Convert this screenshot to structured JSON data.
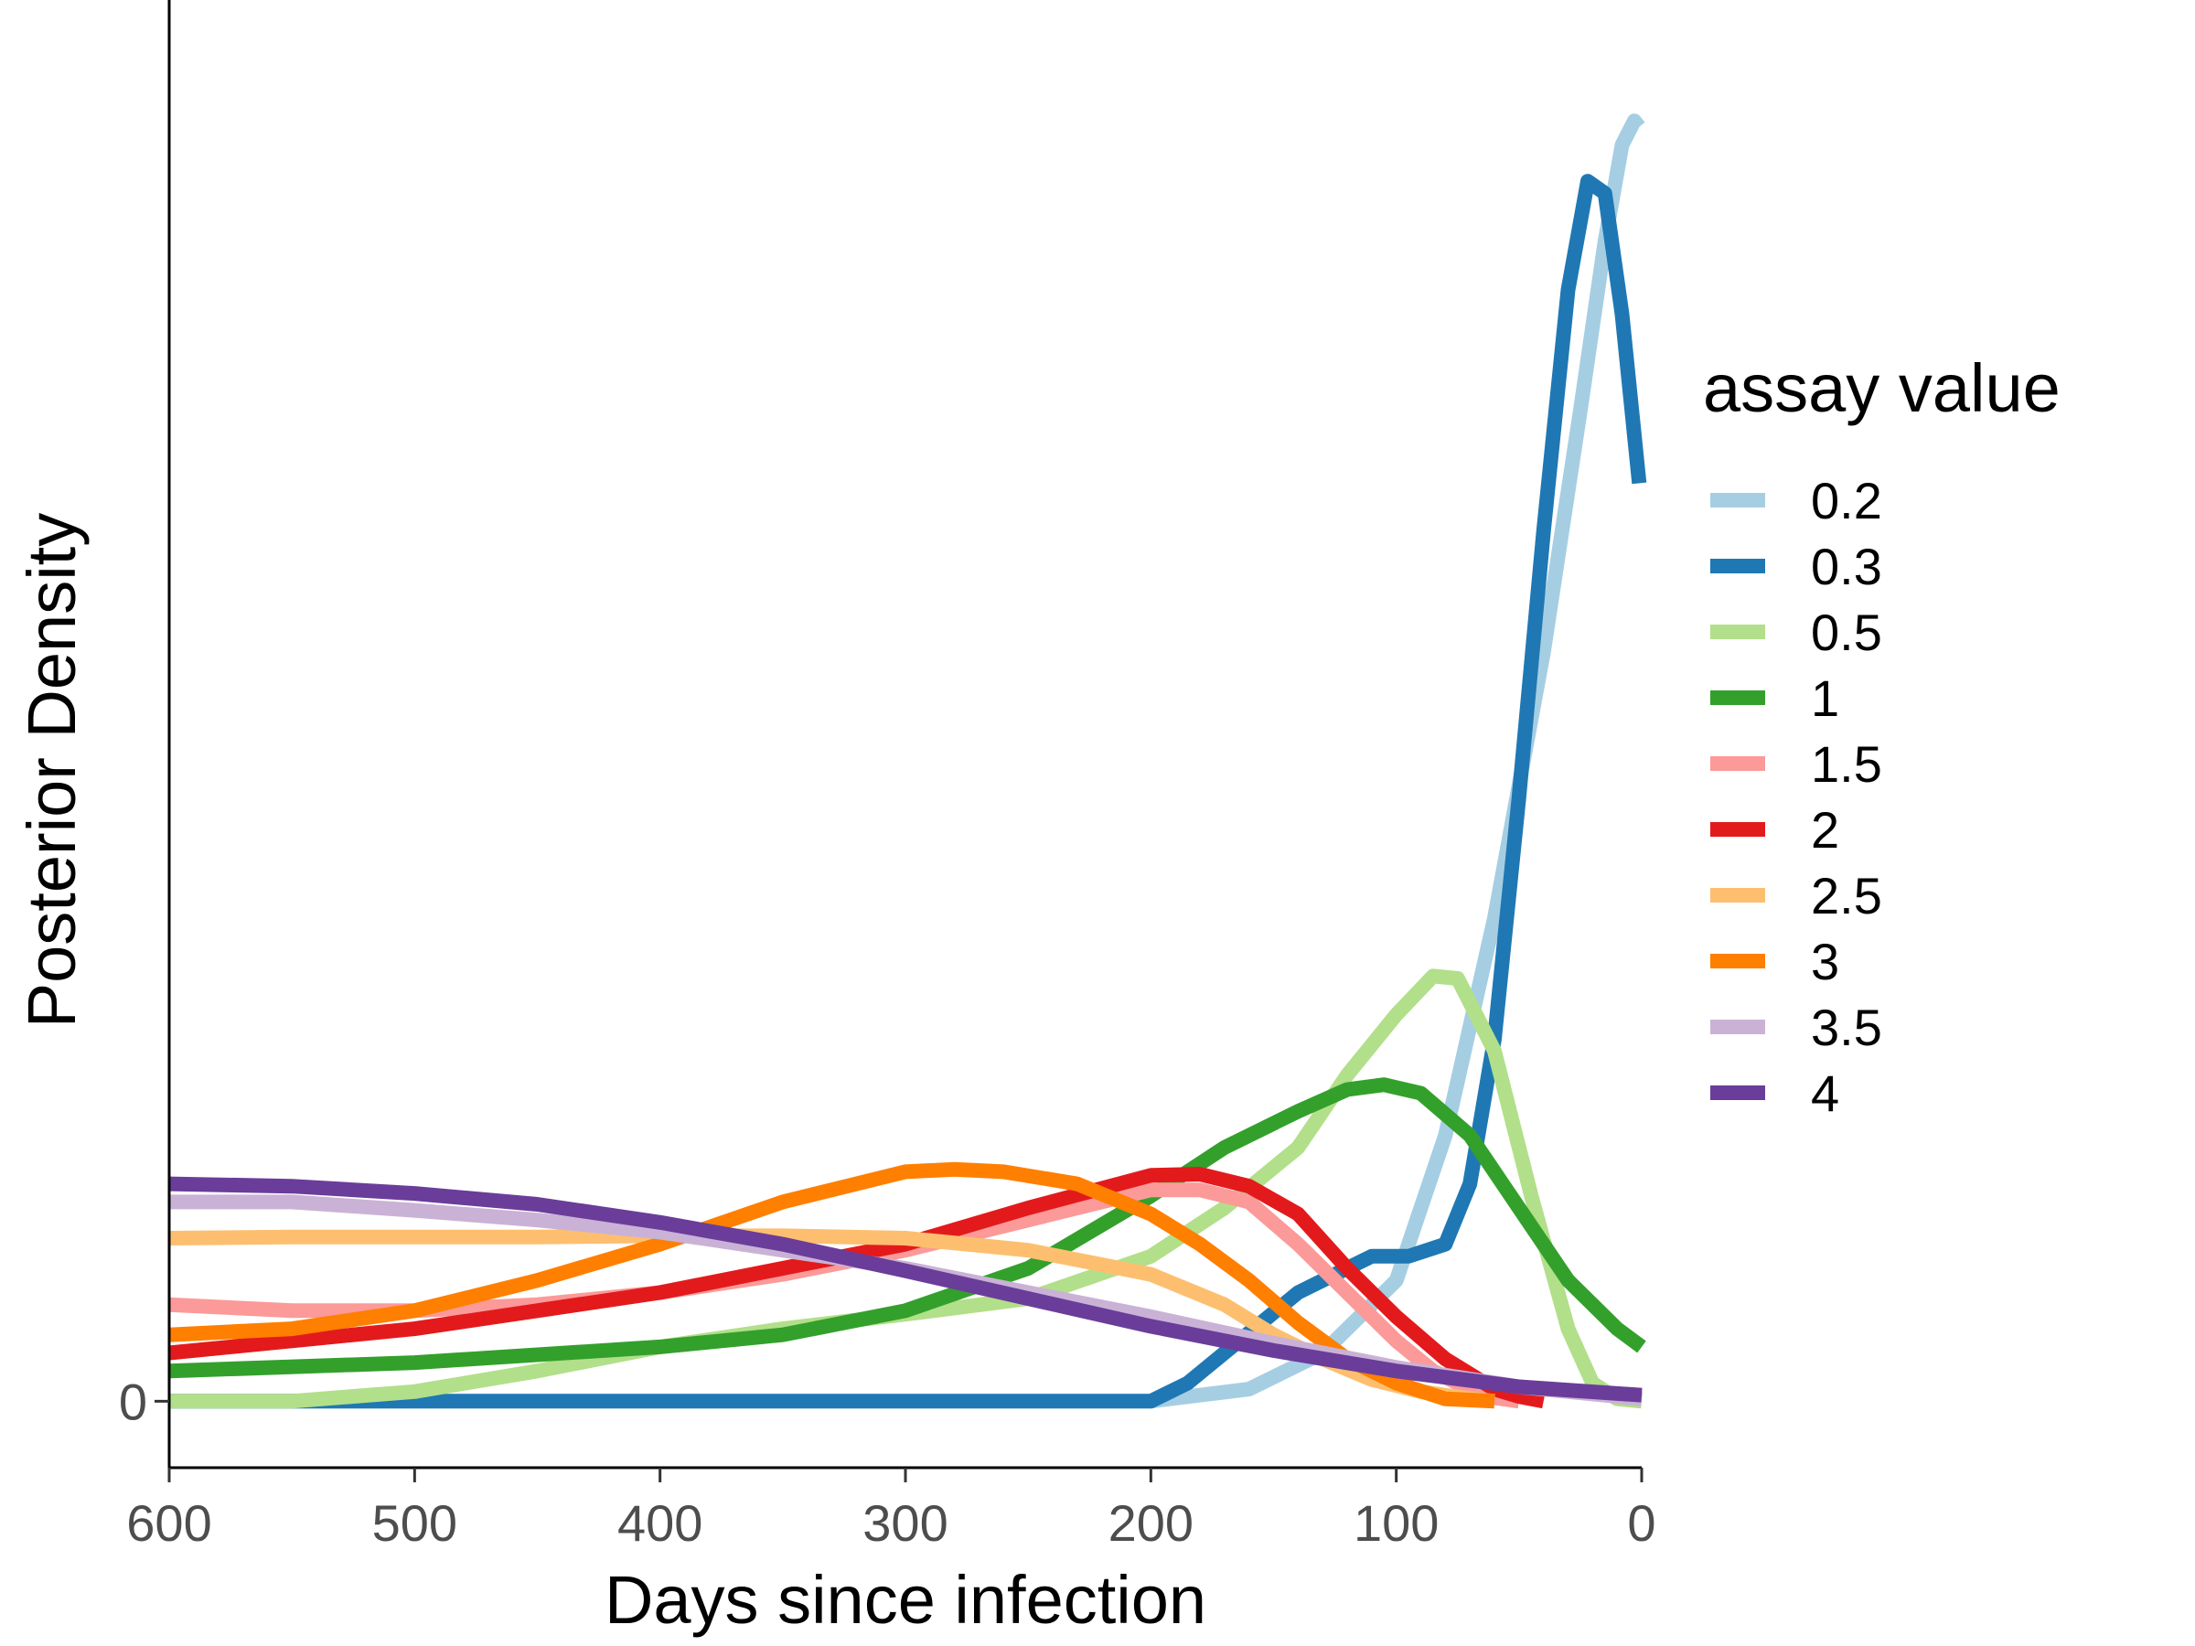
{
  "chart_data": {
    "type": "line",
    "xlabel": "Days since infection",
    "ylabel": "Posterior Density",
    "xlim": [
      600,
      0
    ],
    "x_reversed": true,
    "xticks": [
      "600",
      "500",
      "400",
      "300",
      "200",
      "100",
      "0"
    ],
    "yticks": [
      "0"
    ],
    "ylim": [
      -0.055,
      1.16
    ],
    "grid": false,
    "legend": {
      "title": "assay value",
      "position": "right"
    },
    "series": [
      {
        "name": "0.2",
        "color": "#A6CEE3",
        "points": [
          [
            600,
            0
          ],
          [
            300,
            0
          ],
          [
            200,
            0
          ],
          [
            160,
            0.01
          ],
          [
            130,
            0.04
          ],
          [
            100,
            0.1
          ],
          [
            80,
            0.22
          ],
          [
            60,
            0.4
          ],
          [
            40,
            0.62
          ],
          [
            25,
            0.82
          ],
          [
            15,
            0.96
          ],
          [
            8,
            1.04
          ],
          [
            3,
            1.06
          ],
          [
            1,
            1.055
          ]
        ]
      },
      {
        "name": "0.3",
        "color": "#1F78B4",
        "points": [
          [
            600,
            0
          ],
          [
            300,
            0
          ],
          [
            200,
            0
          ],
          [
            185,
            0.015
          ],
          [
            170,
            0.04
          ],
          [
            155,
            0.065
          ],
          [
            140,
            0.09
          ],
          [
            125,
            0.105
          ],
          [
            110,
            0.12
          ],
          [
            95,
            0.12
          ],
          [
            80,
            0.13
          ],
          [
            70,
            0.18
          ],
          [
            60,
            0.3
          ],
          [
            50,
            0.5
          ],
          [
            40,
            0.72
          ],
          [
            30,
            0.92
          ],
          [
            22,
            1.01
          ],
          [
            15,
            1.0
          ],
          [
            8,
            0.9
          ],
          [
            1,
            0.76
          ]
        ]
      },
      {
        "name": "0.5",
        "color": "#B2DF8A",
        "points": [
          [
            600,
            0
          ],
          [
            550,
            0
          ],
          [
            500,
            0.008
          ],
          [
            450,
            0.025
          ],
          [
            400,
            0.045
          ],
          [
            350,
            0.06
          ],
          [
            300,
            0.072
          ],
          [
            250,
            0.085
          ],
          [
            200,
            0.12
          ],
          [
            170,
            0.16
          ],
          [
            140,
            0.21
          ],
          [
            120,
            0.27
          ],
          [
            100,
            0.32
          ],
          [
            85,
            0.352
          ],
          [
            75,
            0.35
          ],
          [
            60,
            0.29
          ],
          [
            45,
            0.17
          ],
          [
            30,
            0.06
          ],
          [
            20,
            0.015
          ],
          [
            10,
            0.002
          ],
          [
            0,
            0
          ]
        ]
      },
      {
        "name": "1",
        "color": "#33A02C",
        "points": [
          [
            600,
            0.025
          ],
          [
            500,
            0.032
          ],
          [
            400,
            0.045
          ],
          [
            350,
            0.055
          ],
          [
            300,
            0.075
          ],
          [
            250,
            0.11
          ],
          [
            200,
            0.17
          ],
          [
            170,
            0.21
          ],
          [
            140,
            0.24
          ],
          [
            120,
            0.258
          ],
          [
            105,
            0.262
          ],
          [
            90,
            0.255
          ],
          [
            70,
            0.22
          ],
          [
            50,
            0.16
          ],
          [
            30,
            0.1
          ],
          [
            10,
            0.06
          ],
          [
            0,
            0.045
          ]
        ]
      },
      {
        "name": "1.5",
        "color": "#FB9A99",
        "points": [
          [
            600,
            0.08
          ],
          [
            550,
            0.075
          ],
          [
            500,
            0.075
          ],
          [
            450,
            0.08
          ],
          [
            400,
            0.09
          ],
          [
            350,
            0.105
          ],
          [
            300,
            0.125
          ],
          [
            250,
            0.15
          ],
          [
            200,
            0.175
          ],
          [
            180,
            0.175
          ],
          [
            160,
            0.165
          ],
          [
            140,
            0.13
          ],
          [
            120,
            0.09
          ],
          [
            100,
            0.05
          ],
          [
            85,
            0.025
          ],
          [
            70,
            0.01
          ],
          [
            60,
            0.003
          ],
          [
            50,
            0
          ]
        ]
      },
      {
        "name": "2",
        "color": "#E31A1C",
        "points": [
          [
            600,
            0.04
          ],
          [
            550,
            0.05
          ],
          [
            500,
            0.06
          ],
          [
            450,
            0.075
          ],
          [
            400,
            0.09
          ],
          [
            350,
            0.11
          ],
          [
            300,
            0.13
          ],
          [
            250,
            0.16
          ],
          [
            200,
            0.187
          ],
          [
            180,
            0.188
          ],
          [
            160,
            0.178
          ],
          [
            140,
            0.155
          ],
          [
            120,
            0.11
          ],
          [
            100,
            0.07
          ],
          [
            80,
            0.035
          ],
          [
            60,
            0.01
          ],
          [
            50,
            0.004
          ],
          [
            40,
            0
          ]
        ]
      },
      {
        "name": "2.5",
        "color": "#FDBF6F",
        "points": [
          [
            600,
            0.135
          ],
          [
            550,
            0.136
          ],
          [
            500,
            0.136
          ],
          [
            450,
            0.136
          ],
          [
            400,
            0.137
          ],
          [
            350,
            0.137
          ],
          [
            300,
            0.135
          ],
          [
            250,
            0.125
          ],
          [
            200,
            0.105
          ],
          [
            170,
            0.08
          ],
          [
            150,
            0.055
          ],
          [
            130,
            0.035
          ],
          [
            110,
            0.018
          ],
          [
            90,
            0.008
          ],
          [
            70,
            0.002
          ],
          [
            60,
            0
          ]
        ]
      },
      {
        "name": "3",
        "color": "#FF7F00",
        "points": [
          [
            600,
            0.055
          ],
          [
            550,
            0.06
          ],
          [
            500,
            0.075
          ],
          [
            450,
            0.1
          ],
          [
            400,
            0.13
          ],
          [
            350,
            0.165
          ],
          [
            300,
            0.19
          ],
          [
            280,
            0.192
          ],
          [
            260,
            0.19
          ],
          [
            230,
            0.18
          ],
          [
            200,
            0.155
          ],
          [
            180,
            0.13
          ],
          [
            160,
            0.1
          ],
          [
            140,
            0.065
          ],
          [
            120,
            0.035
          ],
          [
            100,
            0.015
          ],
          [
            80,
            0.002
          ],
          [
            60,
            0
          ]
        ]
      },
      {
        "name": "3.5",
        "color": "#CAB2D6",
        "points": [
          [
            600,
            0.165
          ],
          [
            550,
            0.165
          ],
          [
            500,
            0.158
          ],
          [
            450,
            0.15
          ],
          [
            400,
            0.14
          ],
          [
            350,
            0.125
          ],
          [
            300,
            0.11
          ],
          [
            250,
            0.09
          ],
          [
            200,
            0.07
          ],
          [
            150,
            0.048
          ],
          [
            100,
            0.028
          ],
          [
            50,
            0.012
          ],
          [
            0,
            0.002
          ]
        ]
      },
      {
        "name": "4",
        "color": "#6A3D9A",
        "points": [
          [
            600,
            0.18
          ],
          [
            550,
            0.178
          ],
          [
            500,
            0.172
          ],
          [
            450,
            0.163
          ],
          [
            400,
            0.148
          ],
          [
            350,
            0.13
          ],
          [
            300,
            0.108
          ],
          [
            250,
            0.085
          ],
          [
            200,
            0.062
          ],
          [
            150,
            0.042
          ],
          [
            100,
            0.025
          ],
          [
            50,
            0.012
          ],
          [
            0,
            0.005
          ]
        ]
      }
    ]
  }
}
